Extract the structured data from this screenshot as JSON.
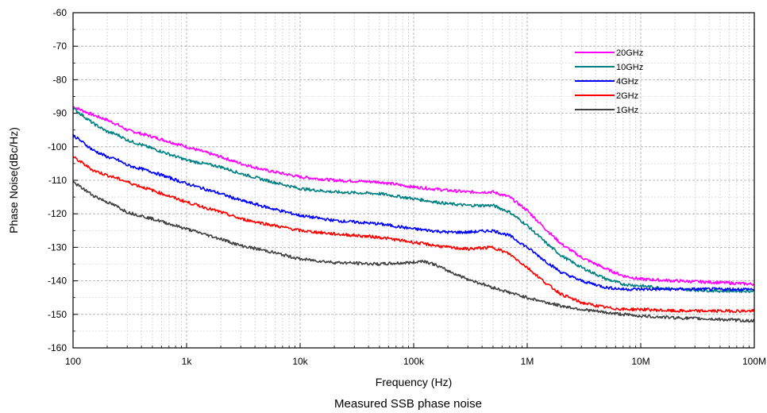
{
  "caption": "Measured SSB phase noise",
  "chart_data": {
    "type": "line",
    "xlabel": "Frequency (Hz)",
    "ylabel": "Phase Noise(dBc/Hz)",
    "x_scale": "log",
    "xlim": [
      100,
      100000000
    ],
    "ylim": [
      -160,
      -60
    ],
    "grid": true,
    "legend_position": "top-right",
    "x_ticks": [
      {
        "value": 100,
        "label": "100"
      },
      {
        "value": 1000,
        "label": "1k"
      },
      {
        "value": 10000,
        "label": "10k"
      },
      {
        "value": 100000,
        "label": "100k"
      },
      {
        "value": 1000000,
        "label": "1M"
      },
      {
        "value": 10000000,
        "label": "10M"
      },
      {
        "value": 100000000,
        "label": "100M"
      }
    ],
    "y_ticks": [
      {
        "value": -60,
        "label": "-60"
      },
      {
        "value": -70,
        "label": "-70"
      },
      {
        "value": -80,
        "label": "-80"
      },
      {
        "value": -90,
        "label": "-90"
      },
      {
        "value": -100,
        "label": "-100"
      },
      {
        "value": -110,
        "label": "-110"
      },
      {
        "value": -120,
        "label": "-120"
      },
      {
        "value": -130,
        "label": "-130"
      },
      {
        "value": -140,
        "label": "-140"
      },
      {
        "value": -150,
        "label": "-150"
      },
      {
        "value": -160,
        "label": "-160"
      }
    ],
    "series": [
      {
        "name": "20GHz",
        "color": "#ff00ff",
        "x": [
          100,
          150,
          200,
          250,
          300,
          500,
          1000,
          2000,
          3000,
          5000,
          10000,
          20000,
          50000,
          100000,
          200000,
          300000,
          500000,
          700000,
          1000000,
          1500000,
          2000000,
          3000000,
          5000000,
          7000000,
          10000000,
          20000000,
          50000000,
          100000000
        ],
        "y": [
          -88,
          -90.5,
          -92,
          -93.5,
          -95,
          -97,
          -100,
          -103,
          -105,
          -107,
          -109,
          -110,
          -110.5,
          -112,
          -113,
          -113.5,
          -113.5,
          -115,
          -119,
          -125,
          -129,
          -133,
          -136.5,
          -138.5,
          -139.5,
          -140,
          -140.5,
          -141
        ]
      },
      {
        "name": "10GHz",
        "color": "#008080",
        "x": [
          100,
          150,
          200,
          250,
          300,
          500,
          1000,
          2000,
          3000,
          5000,
          10000,
          20000,
          50000,
          100000,
          200000,
          300000,
          500000,
          700000,
          1000000,
          1500000,
          2000000,
          3000000,
          5000000,
          7000000,
          10000000,
          20000000,
          50000000,
          100000000
        ],
        "y": [
          -88.5,
          -93,
          -95.5,
          -96.5,
          -98,
          -100.5,
          -104,
          -106,
          -108,
          -110,
          -112.5,
          -113.5,
          -114,
          -115.5,
          -117,
          -117.5,
          -117.5,
          -119.5,
          -123.5,
          -129,
          -132.5,
          -136,
          -139.5,
          -141,
          -141.5,
          -142.5,
          -143,
          -143
        ]
      },
      {
        "name": "4GHz",
        "color": "#0000ff",
        "x": [
          100,
          150,
          200,
          250,
          300,
          500,
          1000,
          2000,
          3000,
          5000,
          10000,
          20000,
          50000,
          100000,
          200000,
          300000,
          500000,
          700000,
          1000000,
          1500000,
          2000000,
          3000000,
          5000000,
          7000000,
          10000000,
          20000000,
          50000000,
          100000000
        ],
        "y": [
          -96.5,
          -101,
          -103,
          -104,
          -105.5,
          -107.5,
          -111,
          -114,
          -116,
          -118,
          -120.5,
          -122,
          -123,
          -124.5,
          -125.5,
          -125.5,
          -125,
          -126.5,
          -130,
          -134.5,
          -137.5,
          -140,
          -142,
          -142.5,
          -142.5,
          -142.5,
          -142.5,
          -142.5
        ]
      },
      {
        "name": "2GHz",
        "color": "#ff0000",
        "x": [
          100,
          150,
          200,
          250,
          300,
          500,
          1000,
          2000,
          3000,
          5000,
          10000,
          20000,
          50000,
          100000,
          200000,
          300000,
          500000,
          700000,
          1000000,
          1500000,
          2000000,
          3000000,
          5000000,
          7000000,
          10000000,
          20000000,
          50000000,
          100000000
        ],
        "y": [
          -103,
          -107,
          -108.5,
          -109.5,
          -110.5,
          -113,
          -116.5,
          -119.5,
          -121.5,
          -123,
          -125,
          -126,
          -127,
          -128.5,
          -130,
          -130.5,
          -130,
          -132,
          -136,
          -141,
          -144,
          -146.5,
          -148,
          -148.5,
          -148.5,
          -149,
          -149,
          -149
        ]
      },
      {
        "name": "1GHz",
        "color": "#404040",
        "x": [
          100,
          150,
          200,
          250,
          300,
          500,
          1000,
          2000,
          3000,
          5000,
          10000,
          20000,
          50000,
          100000,
          120000,
          150000,
          200000,
          300000,
          500000,
          700000,
          1000000,
          1500000,
          2000000,
          3000000,
          5000000,
          7000000,
          10000000,
          20000000,
          50000000,
          100000000
        ],
        "y": [
          -110.5,
          -114.5,
          -116.5,
          -118,
          -119.5,
          -121.5,
          -124.5,
          -127.5,
          -129.5,
          -131,
          -133.5,
          -134.5,
          -135,
          -134.5,
          -134,
          -135,
          -137,
          -139.5,
          -142,
          -143.5,
          -145,
          -146.5,
          -147.5,
          -148.5,
          -149.5,
          -150,
          -150.5,
          -151,
          -151.5,
          -152
        ]
      }
    ]
  }
}
